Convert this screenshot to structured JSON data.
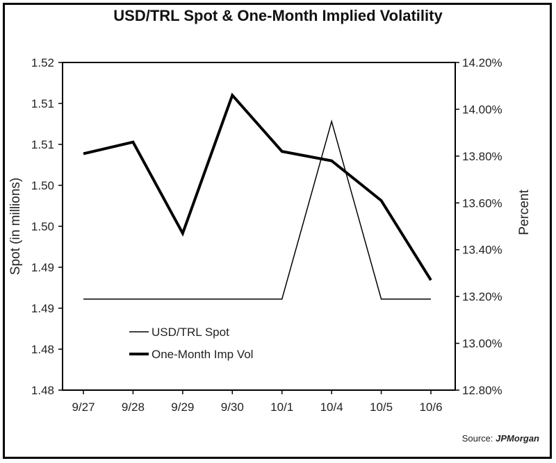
{
  "title": "USD/TRL Spot & One-Month Implied Volatility",
  "source": {
    "label": "Source:",
    "name": "JPMorgan"
  },
  "chart_data": {
    "type": "line",
    "title": "USD/TRL Spot & One-Month Implied Volatility",
    "categories": [
      "9/27",
      "9/28",
      "9/29",
      "9/30",
      "10/1",
      "10/4",
      "10/5",
      "10/6"
    ],
    "ylabel": "Spot (in millions)",
    "y2label": "Percent",
    "ylim": [
      1.475,
      1.52
    ],
    "y2lim": [
      12.8,
      14.2
    ],
    "yticks": [
      "1.48",
      "1.48",
      "1.49",
      "1.49",
      "1.50",
      "1.50",
      "1.51",
      "1.51",
      "1.52"
    ],
    "y2ticks": [
      "12.80%",
      "13.00%",
      "13.20%",
      "13.40%",
      "13.60%",
      "13.80%",
      "14.00%",
      "14.20%"
    ],
    "grid": false,
    "legend_position": "bottom-left",
    "series": [
      {
        "name": "USD/TRL Spot",
        "axis": "left",
        "values": [
          1.4875,
          1.4875,
          1.4875,
          1.4875,
          1.4875,
          1.5119,
          1.4875,
          1.4875
        ]
      },
      {
        "name": "One-Month Imp Vol",
        "axis": "right",
        "values": [
          13.81,
          13.86,
          13.47,
          14.06,
          13.82,
          13.78,
          13.61,
          13.27
        ]
      }
    ]
  }
}
